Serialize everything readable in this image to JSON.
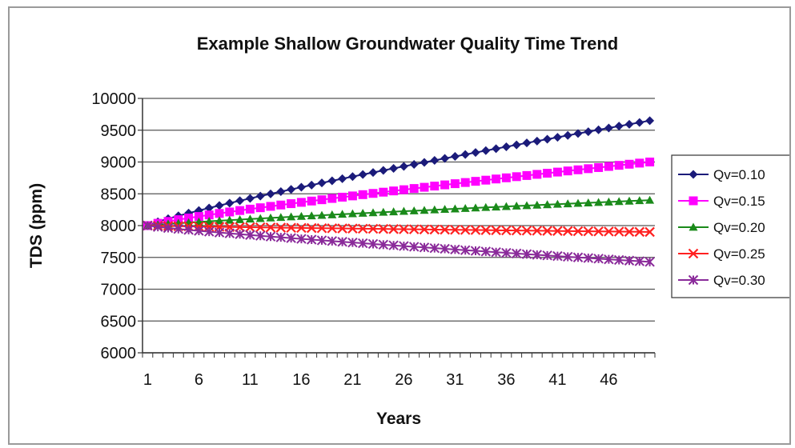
{
  "chart_data": {
    "type": "line",
    "title": "Example Shallow Groundwater Quality Time Trend",
    "xlabel": "Years",
    "ylabel": "TDS (ppm)",
    "ylim": [
      6000,
      10000
    ],
    "yticks": [
      "6000",
      "6500",
      "7000",
      "7500",
      "8000",
      "8500",
      "9000",
      "9500",
      "10000"
    ],
    "xlim": [
      1,
      50
    ],
    "xticks": [
      "1",
      "6",
      "11",
      "16",
      "21",
      "26",
      "31",
      "36",
      "41",
      "46"
    ],
    "grid": true,
    "legend_position": "right",
    "series": [
      {
        "name": "Qv=0.10",
        "color": "#1b1b7a",
        "marker": "diamond",
        "start": 8000,
        "end": 9650
      },
      {
        "name": "Qv=0.15",
        "color": "#ff00ff",
        "marker": "square",
        "start": 8000,
        "end": 9000
      },
      {
        "name": "Qv=0.20",
        "color": "#1a8a1a",
        "marker": "triangle",
        "start": 8000,
        "end": 8400
      },
      {
        "name": "Qv=0.25",
        "color": "#ff2020",
        "marker": "x",
        "start": 8000,
        "end": 7900
      },
      {
        "name": "Qv=0.30",
        "color": "#8a2a9a",
        "marker": "star",
        "start": 8000,
        "end": 7430
      }
    ]
  }
}
